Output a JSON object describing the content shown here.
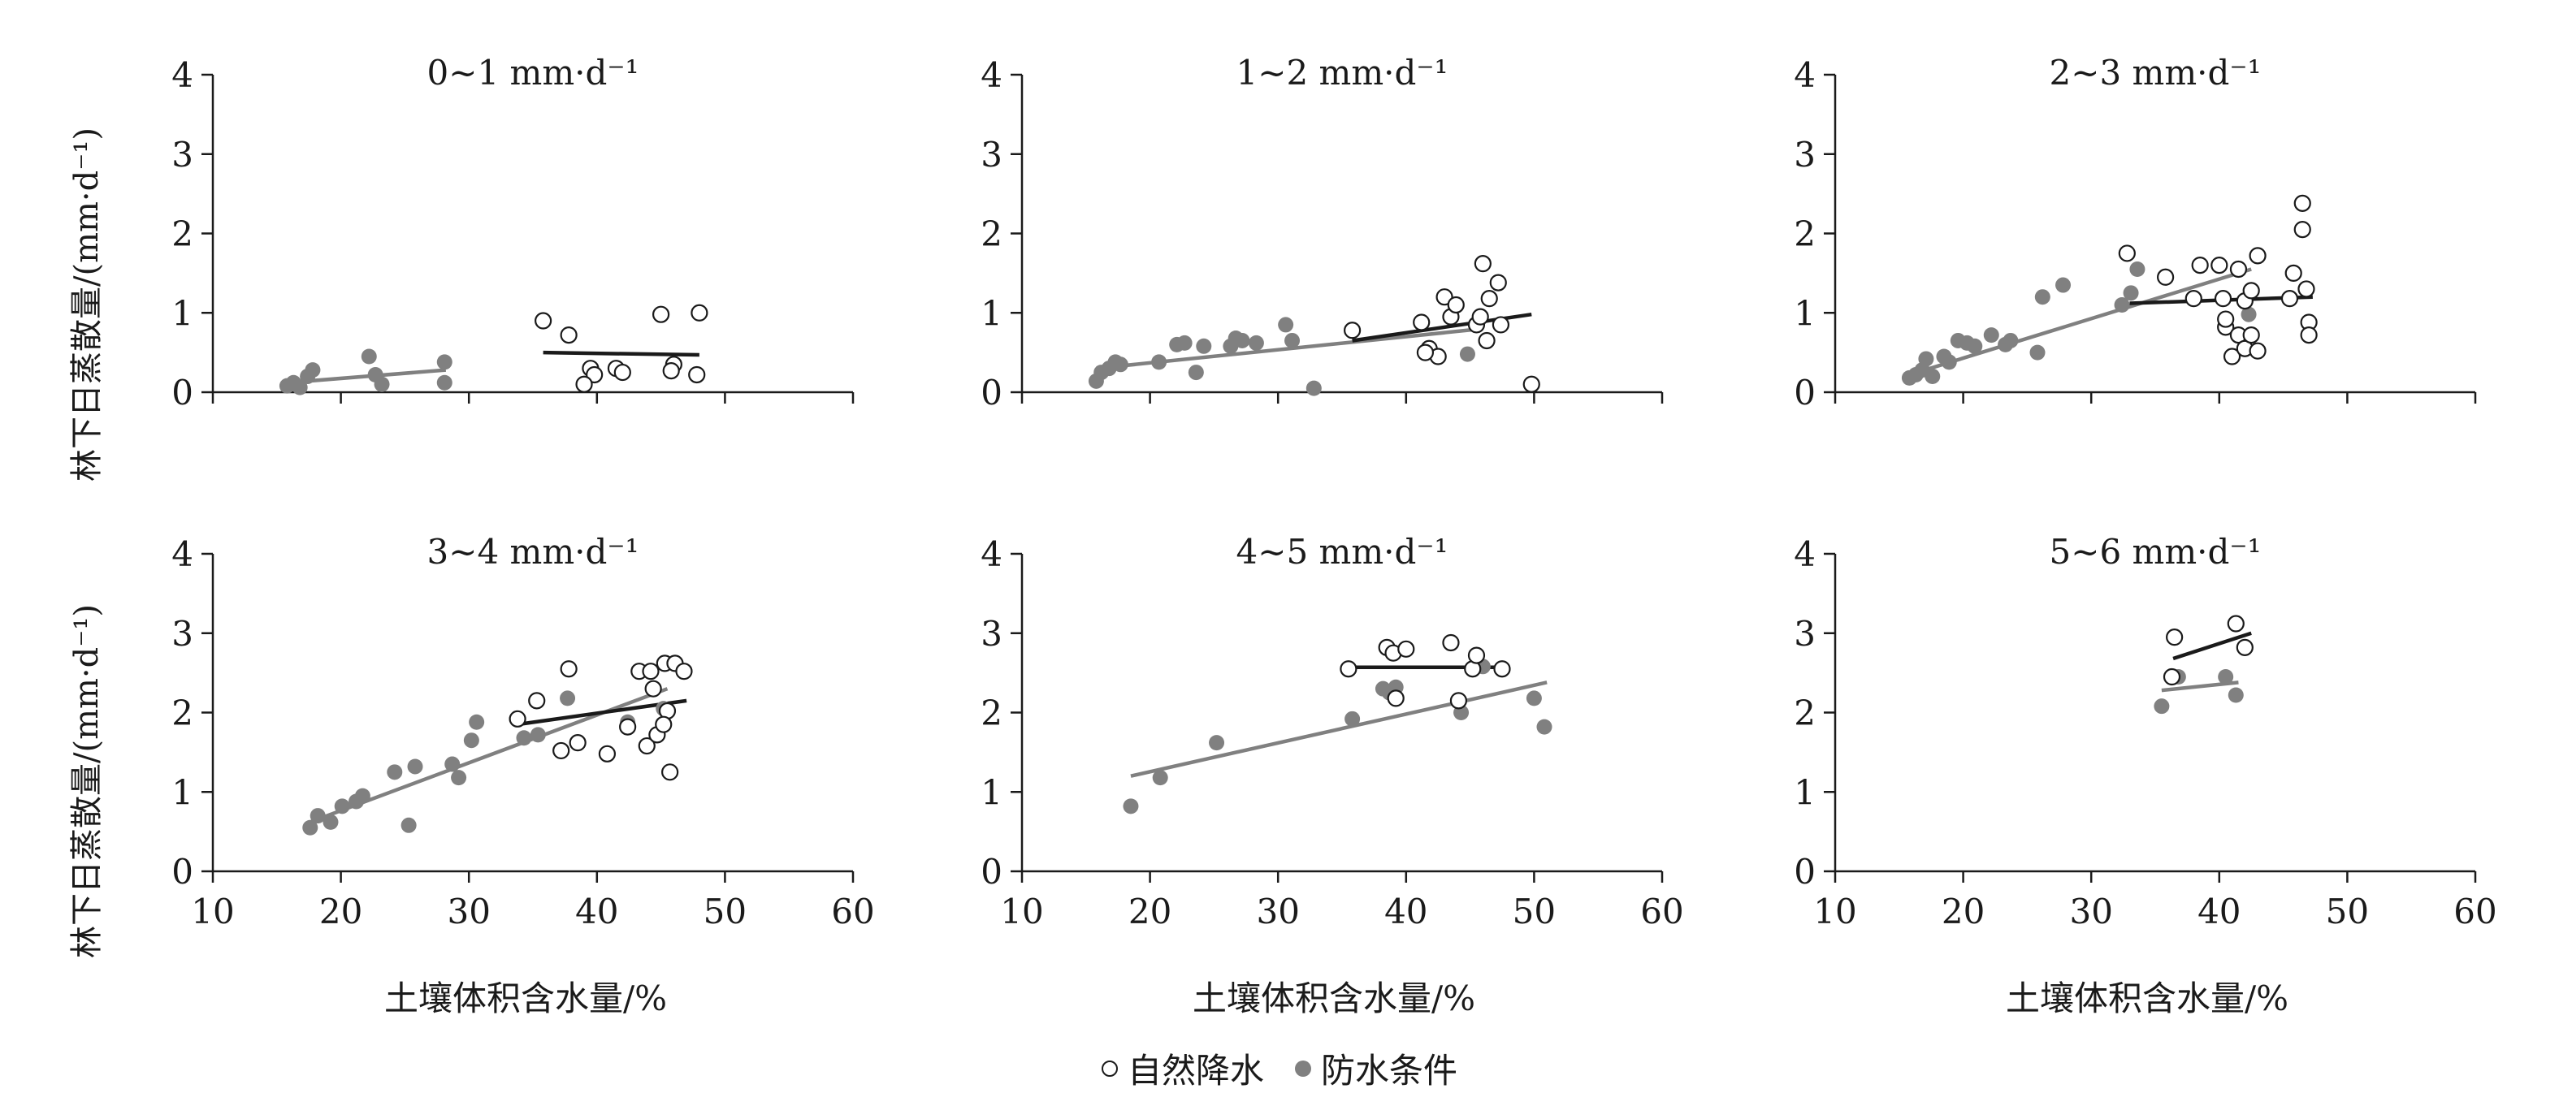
{
  "figure": {
    "ylabel": "林下日蒸散量/(mm·d⁻¹)",
    "xlabel": "土壤体积含水量/%",
    "legend": {
      "open": "自然降水",
      "filled": "防水条件"
    }
  },
  "chart_data": [
    {
      "type": "scatter",
      "title": "0~1 mm·d⁻¹",
      "xlim": [
        10,
        60
      ],
      "ylim": [
        0,
        4
      ],
      "xticks": [
        10,
        20,
        30,
        40,
        50,
        60
      ],
      "yticks": [
        0,
        1,
        2,
        3,
        4
      ],
      "series": [
        {
          "name": "自然降水",
          "marker": "open",
          "color": "#1a1a1a",
          "points": [
            [
              35.8,
              0.9
            ],
            [
              37.8,
              0.72
            ],
            [
              39.5,
              0.3
            ],
            [
              41.5,
              0.3
            ],
            [
              45,
              0.98
            ],
            [
              46,
              0.35
            ],
            [
              48,
              1.0
            ],
            [
              39.8,
              0.22
            ],
            [
              42,
              0.25
            ],
            [
              45.8,
              0.27
            ],
            [
              47.8,
              0.22
            ],
            [
              39,
              0.1
            ]
          ],
          "fit": [
            [
              35.8,
              0.5
            ],
            [
              48,
              0.47
            ]
          ]
        },
        {
          "name": "防水条件",
          "marker": "filled",
          "color": "#808080",
          "points": [
            [
              15.8,
              0.08
            ],
            [
              16.3,
              0.12
            ],
            [
              16.8,
              0.06
            ],
            [
              17.4,
              0.2
            ],
            [
              17.8,
              0.28
            ],
            [
              22.2,
              0.45
            ],
            [
              22.7,
              0.22
            ],
            [
              23.2,
              0.1
            ],
            [
              28.1,
              0.38
            ],
            [
              28.1,
              0.12
            ]
          ],
          "fit": [
            [
              15.8,
              0.12
            ],
            [
              28.2,
              0.28
            ]
          ]
        }
      ]
    },
    {
      "type": "scatter",
      "title": "1~2 mm·d⁻¹",
      "xlim": [
        10,
        60
      ],
      "ylim": [
        0,
        4
      ],
      "xticks": [
        10,
        20,
        30,
        40,
        50,
        60
      ],
      "yticks": [
        0,
        1,
        2,
        3,
        4
      ],
      "series": [
        {
          "name": "自然降水",
          "marker": "open",
          "color": "#1a1a1a",
          "points": [
            [
              35.8,
              0.78
            ],
            [
              41.2,
              0.88
            ],
            [
              41.8,
              0.55
            ],
            [
              42.5,
              0.45
            ],
            [
              43,
              1.2
            ],
            [
              43.5,
              0.95
            ],
            [
              43.9,
              1.1
            ],
            [
              45.5,
              0.85
            ],
            [
              46,
              1.62
            ],
            [
              46.5,
              1.18
            ],
            [
              47.2,
              1.38
            ],
            [
              47.4,
              0.85
            ],
            [
              45.8,
              0.95
            ],
            [
              46.3,
              0.65
            ],
            [
              41.5,
              0.5
            ],
            [
              49.8,
              0.1
            ]
          ],
          "fit": [
            [
              35.8,
              0.65
            ],
            [
              49.8,
              0.98
            ]
          ]
        },
        {
          "name": "防水条件",
          "marker": "filled",
          "color": "#808080",
          "points": [
            [
              15.8,
              0.14
            ],
            [
              16.2,
              0.25
            ],
            [
              16.8,
              0.3
            ],
            [
              17.3,
              0.38
            ],
            [
              17.7,
              0.35
            ],
            [
              20.7,
              0.38
            ],
            [
              22.1,
              0.6
            ],
            [
              22.7,
              0.62
            ],
            [
              23.6,
              0.25
            ],
            [
              24.2,
              0.58
            ],
            [
              26.3,
              0.58
            ],
            [
              26.7,
              0.68
            ],
            [
              27.2,
              0.65
            ],
            [
              28.3,
              0.62
            ],
            [
              30.6,
              0.85
            ],
            [
              31.1,
              0.65
            ],
            [
              32.8,
              0.05
            ],
            [
              44.8,
              0.48
            ]
          ],
          "fit": [
            [
              15.8,
              0.3
            ],
            [
              46,
              0.8
            ]
          ]
        }
      ]
    },
    {
      "type": "scatter",
      "title": "2~3 mm·d⁻¹",
      "xlim": [
        10,
        60
      ],
      "ylim": [
        0,
        4
      ],
      "xticks": [
        10,
        20,
        30,
        40,
        50,
        60
      ],
      "yticks": [
        0,
        1,
        2,
        3,
        4
      ],
      "series": [
        {
          "name": "自然降水",
          "marker": "open",
          "color": "#1a1a1a",
          "points": [
            [
              32.8,
              1.75
            ],
            [
              35.8,
              1.45
            ],
            [
              38,
              1.18
            ],
            [
              38.5,
              1.6
            ],
            [
              40,
              1.6
            ],
            [
              40.5,
              0.82
            ],
            [
              40.5,
              0.92
            ],
            [
              41,
              0.45
            ],
            [
              41.5,
              1.55
            ],
            [
              41.5,
              0.72
            ],
            [
              42,
              1.15
            ],
            [
              42,
              0.55
            ],
            [
              42.5,
              1.28
            ],
            [
              43,
              1.72
            ],
            [
              43,
              0.52
            ],
            [
              45.5,
              1.18
            ],
            [
              45.8,
              1.5
            ],
            [
              46.5,
              2.38
            ],
            [
              46.5,
              2.05
            ],
            [
              46.8,
              1.3
            ],
            [
              47,
              0.88
            ],
            [
              47,
              0.72
            ],
            [
              42.5,
              0.72
            ],
            [
              40.3,
              1.18
            ]
          ],
          "fit": [
            [
              33,
              1.12
            ],
            [
              47.3,
              1.2
            ]
          ]
        },
        {
          "name": "防水条件",
          "marker": "filled",
          "color": "#808080",
          "points": [
            [
              15.8,
              0.18
            ],
            [
              16.3,
              0.22
            ],
            [
              16.8,
              0.28
            ],
            [
              17.1,
              0.42
            ],
            [
              17.6,
              0.2
            ],
            [
              18.5,
              0.45
            ],
            [
              18.9,
              0.38
            ],
            [
              19.6,
              0.65
            ],
            [
              20.3,
              0.62
            ],
            [
              20.9,
              0.58
            ],
            [
              22.2,
              0.72
            ],
            [
              23.3,
              0.6
            ],
            [
              23.7,
              0.65
            ],
            [
              25.8,
              0.5
            ],
            [
              26.2,
              1.2
            ],
            [
              27.8,
              1.35
            ],
            [
              32.4,
              1.1
            ],
            [
              33.1,
              1.25
            ],
            [
              33.6,
              1.55
            ],
            [
              42.3,
              0.98
            ]
          ],
          "fit": [
            [
              15.8,
              0.22
            ],
            [
              42.5,
              1.55
            ]
          ]
        }
      ]
    },
    {
      "type": "scatter",
      "title": "3~4 mm·d⁻¹",
      "xlim": [
        10,
        60
      ],
      "ylim": [
        0,
        4
      ],
      "xticks": [
        10,
        20,
        30,
        40,
        50,
        60
      ],
      "yticks": [
        0,
        1,
        2,
        3,
        4
      ],
      "series": [
        {
          "name": "自然降水",
          "marker": "open",
          "color": "#1a1a1a",
          "points": [
            [
              33.8,
              1.92
            ],
            [
              35.3,
              2.15
            ],
            [
              37.2,
              1.52
            ],
            [
              37.8,
              2.55
            ],
            [
              38.5,
              1.62
            ],
            [
              40.8,
              1.48
            ],
            [
              42.4,
              1.82
            ],
            [
              43.3,
              2.52
            ],
            [
              43.9,
              1.58
            ],
            [
              44.2,
              2.52
            ],
            [
              44.4,
              2.3
            ],
            [
              44.7,
              1.72
            ],
            [
              45.3,
              2.62
            ],
            [
              45.5,
              2.02
            ],
            [
              45.7,
              1.25
            ],
            [
              46.1,
              2.62
            ],
            [
              46.8,
              2.52
            ],
            [
              45.2,
              1.85
            ]
          ],
          "fit": [
            [
              33.8,
              1.85
            ],
            [
              47,
              2.15
            ]
          ]
        },
        {
          "name": "防水条件",
          "marker": "filled",
          "color": "#808080",
          "points": [
            [
              17.6,
              0.55
            ],
            [
              18.2,
              0.7
            ],
            [
              19.2,
              0.62
            ],
            [
              20.1,
              0.82
            ],
            [
              21.2,
              0.88
            ],
            [
              21.7,
              0.95
            ],
            [
              24.2,
              1.25
            ],
            [
              25.3,
              0.58
            ],
            [
              25.8,
              1.32
            ],
            [
              28.7,
              1.35
            ],
            [
              29.2,
              1.18
            ],
            [
              30.2,
              1.65
            ],
            [
              30.6,
              1.88
            ],
            [
              34.3,
              1.68
            ],
            [
              35.4,
              1.72
            ],
            [
              37.7,
              2.18
            ],
            [
              42.4,
              1.88
            ],
            [
              45.2,
              2.05
            ]
          ],
          "fit": [
            [
              17.6,
              0.62
            ],
            [
              45.5,
              2.3
            ]
          ]
        }
      ]
    },
    {
      "type": "scatter",
      "title": "4~5 mm·d⁻¹",
      "xlim": [
        10,
        60
      ],
      "ylim": [
        0,
        4
      ],
      "xticks": [
        10,
        20,
        30,
        40,
        50,
        60
      ],
      "yticks": [
        0,
        1,
        2,
        3,
        4
      ],
      "series": [
        {
          "name": "自然降水",
          "marker": "open",
          "color": "#1a1a1a",
          "points": [
            [
              35.5,
              2.55
            ],
            [
              38.5,
              2.82
            ],
            [
              39,
              2.75
            ],
            [
              39.2,
              2.18
            ],
            [
              40,
              2.8
            ],
            [
              43.5,
              2.88
            ],
            [
              44.1,
              2.15
            ],
            [
              45.2,
              2.55
            ],
            [
              45.5,
              2.72
            ],
            [
              47.5,
              2.55
            ]
          ],
          "fit": [
            [
              35.5,
              2.57
            ],
            [
              47.8,
              2.57
            ]
          ]
        },
        {
          "name": "防水条件",
          "marker": "filled",
          "color": "#808080",
          "points": [
            [
              18.5,
              0.82
            ],
            [
              20.8,
              1.18
            ],
            [
              25.2,
              1.62
            ],
            [
              35.8,
              1.92
            ],
            [
              38.2,
              2.3
            ],
            [
              38.7,
              2.25
            ],
            [
              39.2,
              2.32
            ],
            [
              44.3,
              2.0
            ],
            [
              46,
              2.58
            ],
            [
              50,
              2.18
            ],
            [
              50.8,
              1.82
            ]
          ],
          "fit": [
            [
              18.5,
              1.2
            ],
            [
              51,
              2.38
            ]
          ]
        }
      ]
    },
    {
      "type": "scatter",
      "title": "5~6 mm·d⁻¹",
      "xlim": [
        10,
        60
      ],
      "ylim": [
        0,
        4
      ],
      "xticks": [
        10,
        20,
        30,
        40,
        50,
        60
      ],
      "yticks": [
        0,
        1,
        2,
        3,
        4
      ],
      "series": [
        {
          "name": "自然降水",
          "marker": "open",
          "color": "#1a1a1a",
          "points": [
            [
              36.5,
              2.95
            ],
            [
              41.3,
              3.12
            ],
            [
              42,
              2.82
            ],
            [
              36.3,
              2.45
            ]
          ],
          "fit": [
            [
              36.4,
              2.68
            ],
            [
              42.5,
              3.0
            ]
          ]
        },
        {
          "name": "防水条件",
          "marker": "filled",
          "color": "#808080",
          "points": [
            [
              35.5,
              2.08
            ],
            [
              36.8,
              2.45
            ],
            [
              40.5,
              2.45
            ],
            [
              41.3,
              2.22
            ]
          ],
          "fit": [
            [
              35.5,
              2.28
            ],
            [
              41.5,
              2.38
            ]
          ]
        }
      ]
    }
  ]
}
